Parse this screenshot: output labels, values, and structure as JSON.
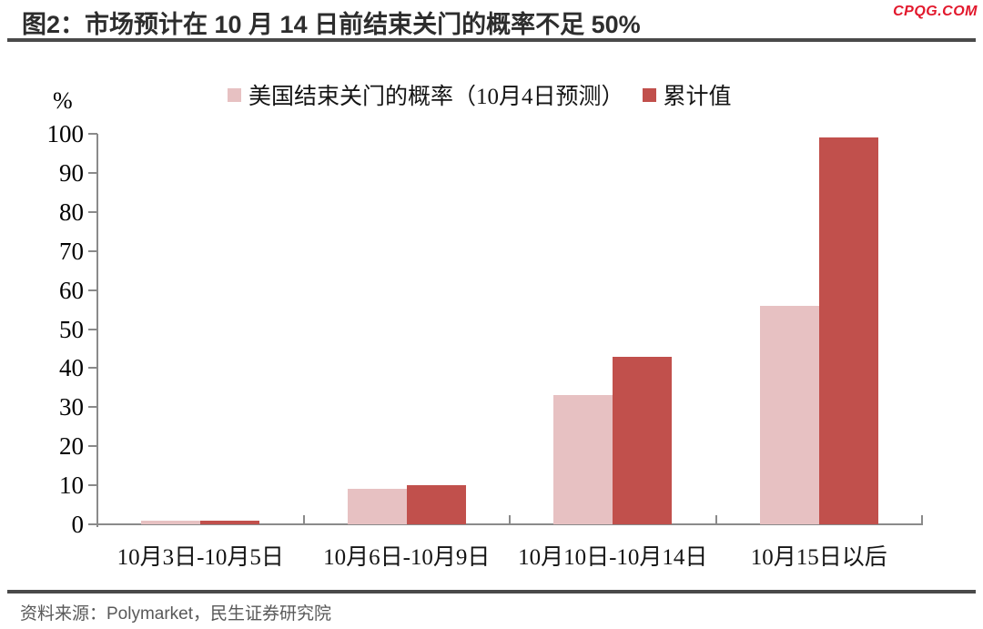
{
  "header": {
    "title": "图2：市场预计在 10 月 14 日前结束关门的概率不足 50%",
    "brand": "CPQG.COM"
  },
  "legend": {
    "items": [
      {
        "label": "美国结束关门的概率（10月4日预测）",
        "color": "#e7c1c2"
      },
      {
        "label": "累计值",
        "color": "#c1504c"
      }
    ]
  },
  "chart_data": {
    "type": "bar",
    "title": "市场预计在 10 月 14 日前结束关门的概率不足 50%",
    "unit_label": "%",
    "categories": [
      "10月3日-10月5日",
      "10月6日-10月9日",
      "10月10日-10月14日",
      "10月15日以后"
    ],
    "series": [
      {
        "name": "美国结束关门的概率（10月4日预测）",
        "color": "#e7c1c2",
        "values": [
          1,
          9,
          33,
          56
        ]
      },
      {
        "name": "累计值",
        "color": "#c1504c",
        "values": [
          1,
          10,
          43,
          99
        ]
      }
    ],
    "ylim": [
      0,
      100
    ],
    "y_ticks": [
      0,
      10,
      20,
      30,
      40,
      50,
      60,
      70,
      80,
      90,
      100
    ],
    "grid": false,
    "legend_position": "top"
  },
  "footer": {
    "source": "资料来源：Polymarket，民生证券研究院"
  },
  "colors": {
    "axis": "#8a8a8a",
    "rule": "#4a4a4a",
    "brand": "#e2182c",
    "title_text": "#2d2d2d",
    "source_text": "#595959"
  }
}
